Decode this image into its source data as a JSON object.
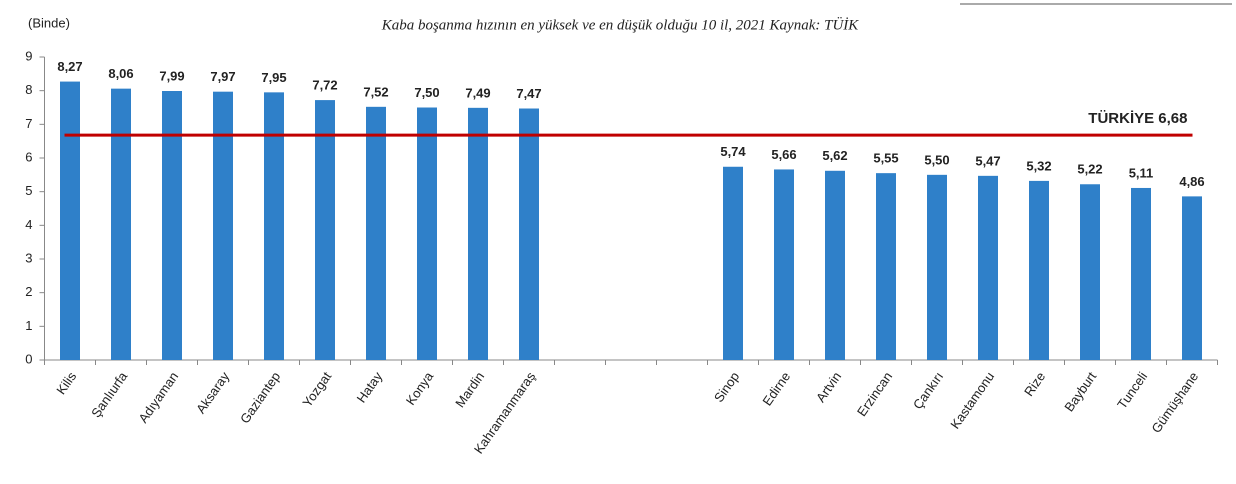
{
  "chart_data": {
    "type": "bar",
    "title": "Kaba boşanma hızının en yüksek ve en düşük olduğu 10 il, 2021 Kaynak: TÜİK",
    "y_label": "(Binde)",
    "categories": [
      "Kilis",
      "Şanlıurfa",
      "Adıyaman",
      "Aksaray",
      "Gaziantep",
      "Yozgat",
      "Hatay",
      "Konya",
      "Mardin",
      "Kahramanmaraş",
      null,
      null,
      null,
      "Sinop",
      "Edirne",
      "Artvin",
      "Erzincan",
      "Çankırı",
      "Kastamonu",
      "Rize",
      "Bayburt",
      "Tunceli",
      "Gümüşhane"
    ],
    "values": [
      8.27,
      8.06,
      7.99,
      7.97,
      7.95,
      7.72,
      7.52,
      7.5,
      7.49,
      7.47,
      null,
      null,
      null,
      5.74,
      5.66,
      5.62,
      5.55,
      5.5,
      5.47,
      5.32,
      5.22,
      5.11,
      4.86
    ],
    "value_labels": [
      "8,27",
      "8,06",
      "7,99",
      "7,97",
      "7,95",
      "7,72",
      "7,52",
      "7,50",
      "7,49",
      "7,47",
      null,
      null,
      null,
      "5,74",
      "5,66",
      "5,62",
      "5,55",
      "5,50",
      "5,47",
      "5,32",
      "5,22",
      "5,11",
      "4,86"
    ],
    "color": "#2f80c9",
    "reference_line": {
      "value": 6.68,
      "label": "TÜRKİYE 6,68",
      "color": "#c00000"
    },
    "ylim": [
      0,
      9
    ],
    "yticks": [
      0,
      1,
      2,
      3,
      4,
      5,
      6,
      7,
      8,
      9
    ],
    "grid": false
  }
}
